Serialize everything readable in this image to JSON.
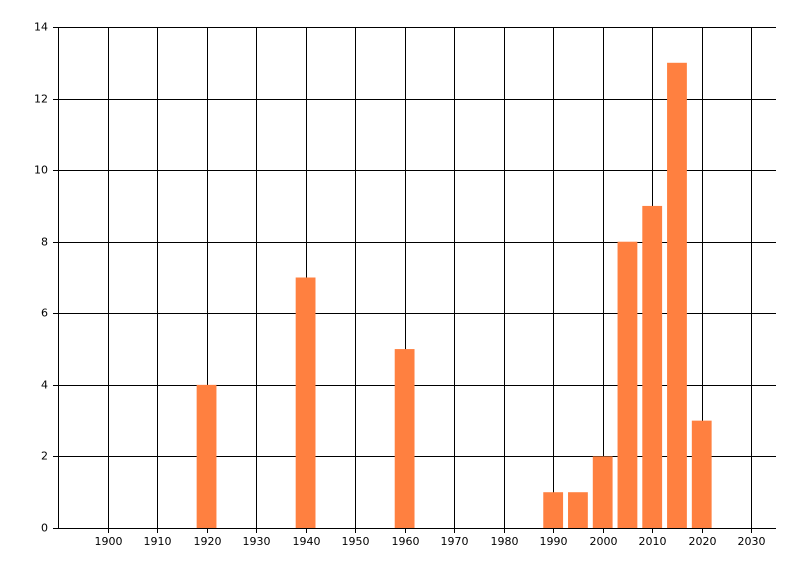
{
  "chart_data": {
    "type": "bar",
    "x": [
      1920,
      1940,
      1960,
      1990,
      1995,
      2000,
      2005,
      2010,
      2015,
      2020
    ],
    "values": [
      4,
      7,
      5,
      1,
      1,
      2,
      8,
      9,
      13,
      3
    ],
    "color": "#ff8040",
    "xlim": [
      1890,
      2035
    ],
    "xticks": [
      1900,
      1910,
      1920,
      1930,
      1940,
      1950,
      1960,
      1970,
      1980,
      1990,
      2000,
      2010,
      2020,
      2030
    ],
    "ylim": [
      0,
      14
    ],
    "yticks": [
      0,
      2,
      4,
      6,
      8,
      10,
      12,
      14
    ],
    "grid": true
  }
}
